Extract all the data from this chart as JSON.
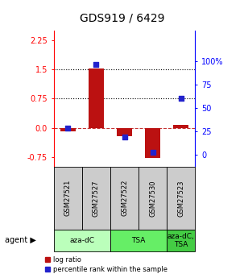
{
  "title": "GDS919 / 6429",
  "samples": [
    "GSM27521",
    "GSM27527",
    "GSM27522",
    "GSM27530",
    "GSM27523"
  ],
  "log_ratios": [
    -0.08,
    1.52,
    -0.22,
    -0.78,
    0.07
  ],
  "percentile_ranks": [
    28,
    97,
    19,
    2,
    60
  ],
  "bar_color": "#bb1111",
  "dot_color": "#2222cc",
  "ylim_left": [
    -1.0,
    2.5
  ],
  "ylim_right": [
    -13.33,
    133.33
  ],
  "yticks_left": [
    -0.75,
    0.0,
    0.75,
    1.5,
    2.25
  ],
  "yticks_right": [
    0,
    25,
    50,
    75,
    100
  ],
  "hlines": [
    0.75,
    1.5
  ],
  "hline_zero": 0.0,
  "group_info": [
    {
      "start": 0,
      "end": 1,
      "label": "aza-dC",
      "color": "#bbffbb"
    },
    {
      "start": 2,
      "end": 3,
      "label": "TSA",
      "color": "#66ee66"
    },
    {
      "start": 4,
      "end": 4,
      "label": "aza-dC,\nTSA",
      "color": "#44cc44"
    }
  ],
  "background_color": "#ffffff"
}
